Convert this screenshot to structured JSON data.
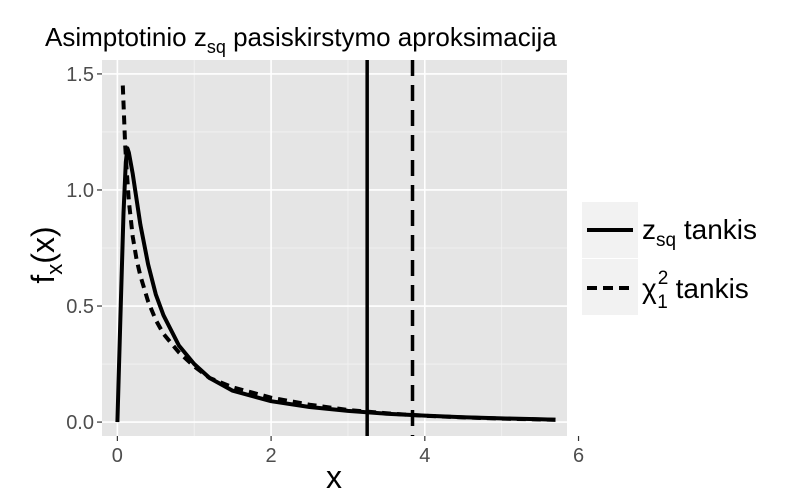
{
  "chart_data": {
    "type": "line",
    "title": {
      "prefix": "Asimptotinio z",
      "subscript": "sq",
      "suffix": " pasiskirstymo aproksimacija"
    },
    "xlabel": "x",
    "ylabel": {
      "main": "f",
      "subscript": "x",
      "suffix": "(x)"
    },
    "xlim": [
      -0.2,
      5.85
    ],
    "ylim": [
      -0.06,
      1.56
    ],
    "x_ticks": [
      0,
      2,
      4,
      6
    ],
    "y_ticks": [
      0.0,
      0.5,
      1.0,
      1.5
    ],
    "y_tick_labels": [
      "0.0",
      "0.5",
      "1.0",
      "1.5"
    ],
    "grid": true,
    "legend_position": "right",
    "colors": {
      "panel": "#e5e5e5",
      "grid_major": "#ffffff",
      "grid_minor": "#f2f2f2",
      "line": "#000000",
      "legend_key_bg": "#f2f2f2"
    },
    "series": [
      {
        "name": "z_sq tankis",
        "label": {
          "main": "z",
          "subscript": "sq",
          "suffix": " tankis"
        },
        "linestyle": "solid",
        "x": [
          0.0,
          0.04,
          0.08,
          0.11,
          0.13,
          0.15,
          0.2,
          0.3,
          0.4,
          0.5,
          0.6,
          0.8,
          1.0,
          1.2,
          1.5,
          2.0,
          2.5,
          3.0,
          3.5,
          4.0,
          4.5,
          5.0,
          5.5,
          5.7
        ],
        "y": [
          0.0,
          0.45,
          0.9,
          1.12,
          1.18,
          1.16,
          1.07,
          0.85,
          0.68,
          0.55,
          0.46,
          0.33,
          0.25,
          0.19,
          0.135,
          0.09,
          0.065,
          0.048,
          0.036,
          0.028,
          0.021,
          0.016,
          0.012,
          0.01
        ]
      },
      {
        "name": "χ²₁ tankis",
        "label": {
          "main": "χ",
          "superscript": "2",
          "subscript": "1",
          "suffix": " tankis"
        },
        "linestyle": "dashed",
        "x": [
          0.07,
          0.1,
          0.12,
          0.15,
          0.2,
          0.25,
          0.3,
          0.4,
          0.5,
          0.6,
          0.8,
          1.0,
          1.2,
          1.5,
          2.0,
          2.5,
          3.0,
          3.5,
          4.0,
          4.5,
          5.0,
          5.5,
          5.7
        ],
        "y": [
          1.45,
          1.2,
          1.09,
          0.95,
          0.8,
          0.7,
          0.63,
          0.52,
          0.44,
          0.38,
          0.3,
          0.24,
          0.19,
          0.15,
          0.105,
          0.075,
          0.052,
          0.038,
          0.027,
          0.02,
          0.015,
          0.011,
          0.01
        ]
      }
    ],
    "vlines": [
      {
        "x": 3.25,
        "linestyle": "solid"
      },
      {
        "x": 3.84,
        "linestyle": "dashed"
      }
    ]
  }
}
